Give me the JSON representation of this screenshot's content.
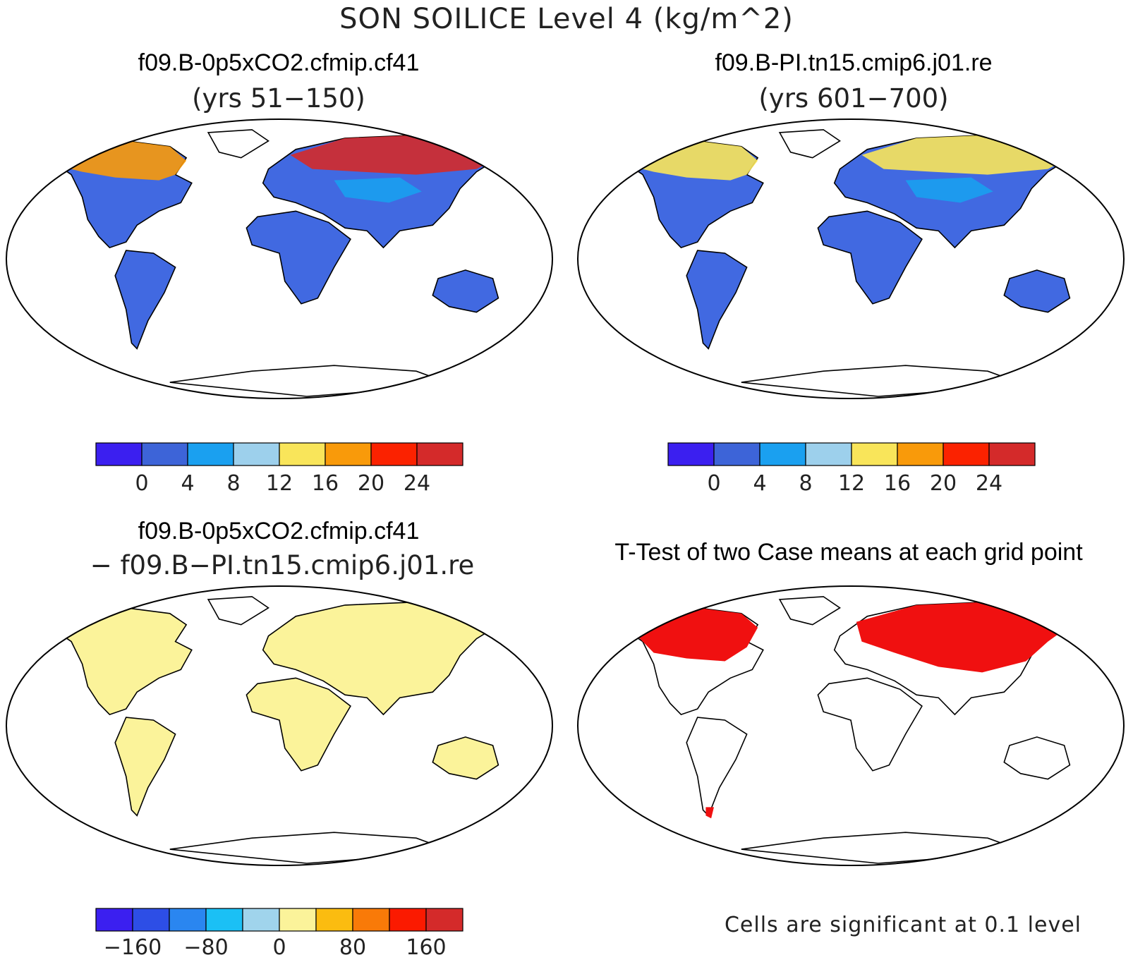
{
  "main_title": "SON SOILICE Level 4 (kg/m^2)",
  "panels": [
    {
      "title": "f09.B-0p5xCO2.cfmip.cf41",
      "subtitle": "(yrs 51−150)",
      "fill": "#4169e1",
      "colorbar": {
        "colors": [
          "#3b1ff0",
          "#3d64d8",
          "#1aa0f0",
          "#9dd0ec",
          "#f9e55a",
          "#f99a0a",
          "#fb2200",
          "#d42a2a"
        ],
        "labels": [
          "0",
          "4",
          "8",
          "12",
          "16",
          "20",
          "24"
        ]
      }
    },
    {
      "title": "f09.B-PI.tn15.cmip6.j01.re",
      "subtitle": "(yrs 601−700)",
      "fill": "#4169e1",
      "colorbar": {
        "colors": [
          "#3b1ff0",
          "#3d64d8",
          "#1aa0f0",
          "#9dd0ec",
          "#f9e55a",
          "#f99a0a",
          "#fb2200",
          "#d42a2a"
        ],
        "labels": [
          "0",
          "4",
          "8",
          "12",
          "16",
          "20",
          "24"
        ]
      }
    },
    {
      "title": "f09.B-0p5xCO2.cfmip.cf41",
      "subtitle": "− f09.B−PI.tn15.cmip6.j01.re",
      "fill": "#fbf39a",
      "colorbar": {
        "colors": [
          "#3b1ff0",
          "#2d4ee6",
          "#2a86f0",
          "#1bc0f5",
          "#a0d4ec",
          "#fbf39a",
          "#fbbc10",
          "#f97a08",
          "#fb1a00",
          "#d42a2a"
        ],
        "labels": [
          "−160",
          "−80",
          "0",
          "80",
          "160"
        ]
      }
    },
    {
      "title": "T-Test of two Case means at each grid point",
      "fill": "#ffffff",
      "significance_color": "#f01010",
      "note": "Cells are significant at 0.1 level"
    }
  ],
  "colors": {
    "ocean": "#ffffff",
    "coast": "#000000"
  }
}
